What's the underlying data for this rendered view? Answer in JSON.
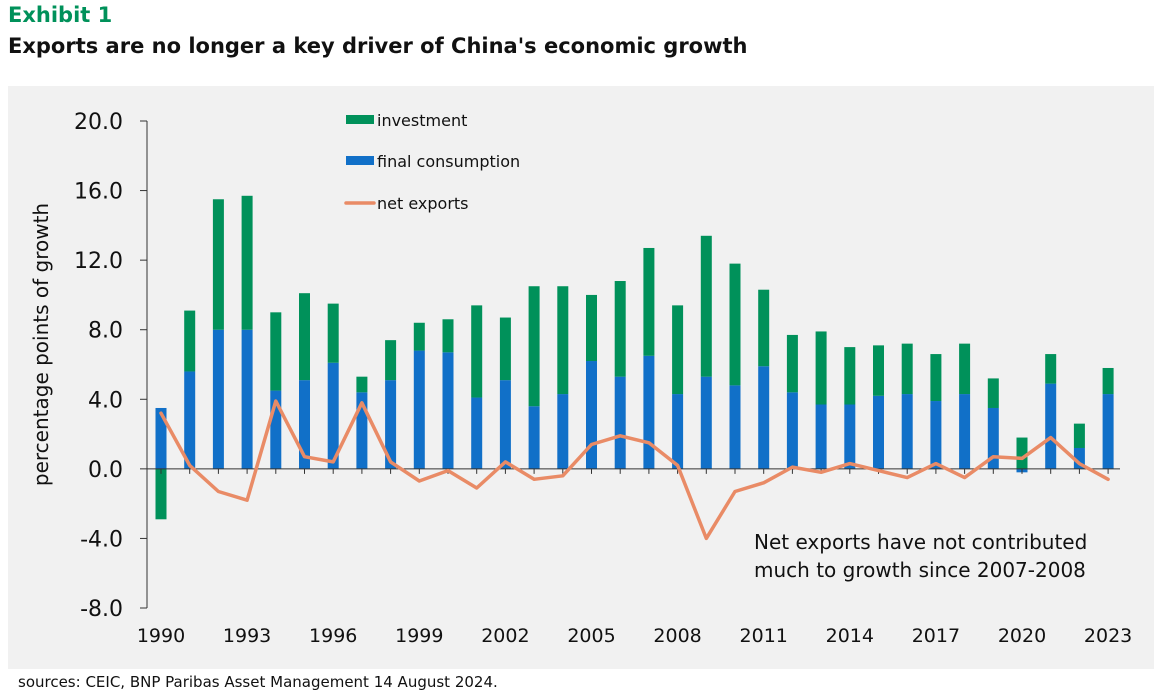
{
  "header": {
    "exhibit": "Exhibit 1",
    "title": "Exports are no longer a key driver of China's economic growth"
  },
  "footer": {
    "source": "sources: CEIC, BNP Paribas Asset Management  14 August 2024."
  },
  "colors": {
    "investment": "#00915a",
    "final_consumption": "#1170c8",
    "net_exports": "#e98b66",
    "axis": "#333333",
    "panel": "#f1f1f1"
  },
  "chart_data": {
    "type": "bar",
    "title": "Exports are no longer a key driver of China's economic growth",
    "xlabel": "",
    "ylabel": "percentage points of growth",
    "ylim": [
      -8,
      20
    ],
    "yticks": [
      20,
      16,
      12,
      8,
      4,
      0,
      -4,
      -8
    ],
    "ytick_labels": [
      "20.0",
      "16.0",
      "12.0",
      "8.0",
      "4.0",
      "0.0",
      "-4.0",
      "-8.0"
    ],
    "categories": [
      1990,
      1991,
      1992,
      1993,
      1994,
      1995,
      1996,
      1997,
      1998,
      1999,
      2000,
      2001,
      2002,
      2003,
      2004,
      2005,
      2006,
      2007,
      2008,
      2009,
      2010,
      2011,
      2012,
      2013,
      2014,
      2015,
      2016,
      2017,
      2018,
      2019,
      2020,
      2021,
      2022,
      2023
    ],
    "xtick_labels": [
      "1990",
      "1993",
      "1996",
      "1999",
      "2002",
      "2005",
      "2008",
      "2011",
      "2014",
      "2017",
      "2020",
      "2023"
    ],
    "legend_position": "top-left",
    "legend": [
      "investment",
      "final consumption",
      "net exports"
    ],
    "series": [
      {
        "name": "final consumption",
        "kind": "bar-stacked",
        "values": [
          3.5,
          5.6,
          8.0,
          8.0,
          4.5,
          5.1,
          6.1,
          4.4,
          5.1,
          6.8,
          6.7,
          4.1,
          5.1,
          3.6,
          4.3,
          6.2,
          5.3,
          6.5,
          4.3,
          5.3,
          4.8,
          5.9,
          4.4,
          3.7,
          3.7,
          4.2,
          4.3,
          3.9,
          4.3,
          3.5,
          -0.2,
          4.9,
          1.2,
          4.3
        ]
      },
      {
        "name": "investment",
        "kind": "bar-stacked",
        "values": [
          -2.9,
          3.5,
          7.5,
          7.7,
          4.5,
          5.0,
          3.4,
          0.9,
          2.3,
          1.6,
          1.9,
          5.3,
          3.6,
          6.9,
          6.2,
          3.8,
          5.5,
          6.2,
          5.1,
          8.1,
          7.0,
          4.4,
          3.3,
          4.2,
          3.3,
          2.9,
          2.9,
          2.7,
          2.9,
          1.7,
          1.8,
          1.7,
          1.4,
          1.5
        ]
      },
      {
        "name": "net exports",
        "kind": "line",
        "values": [
          3.2,
          0.2,
          -1.3,
          -1.8,
          3.9,
          0.7,
          0.4,
          3.8,
          0.4,
          -0.7,
          -0.1,
          -1.1,
          0.4,
          -0.6,
          -0.4,
          1.4,
          1.9,
          1.5,
          0.2,
          -4.0,
          -1.3,
          -0.8,
          0.1,
          -0.2,
          0.3,
          -0.1,
          -0.5,
          0.3,
          -0.5,
          0.7,
          0.6,
          1.8,
          0.3,
          -0.6
        ]
      }
    ],
    "annotation": {
      "lines": [
        "Net exports have not contributed",
        "much to growth since 2007-2008"
      ]
    }
  }
}
